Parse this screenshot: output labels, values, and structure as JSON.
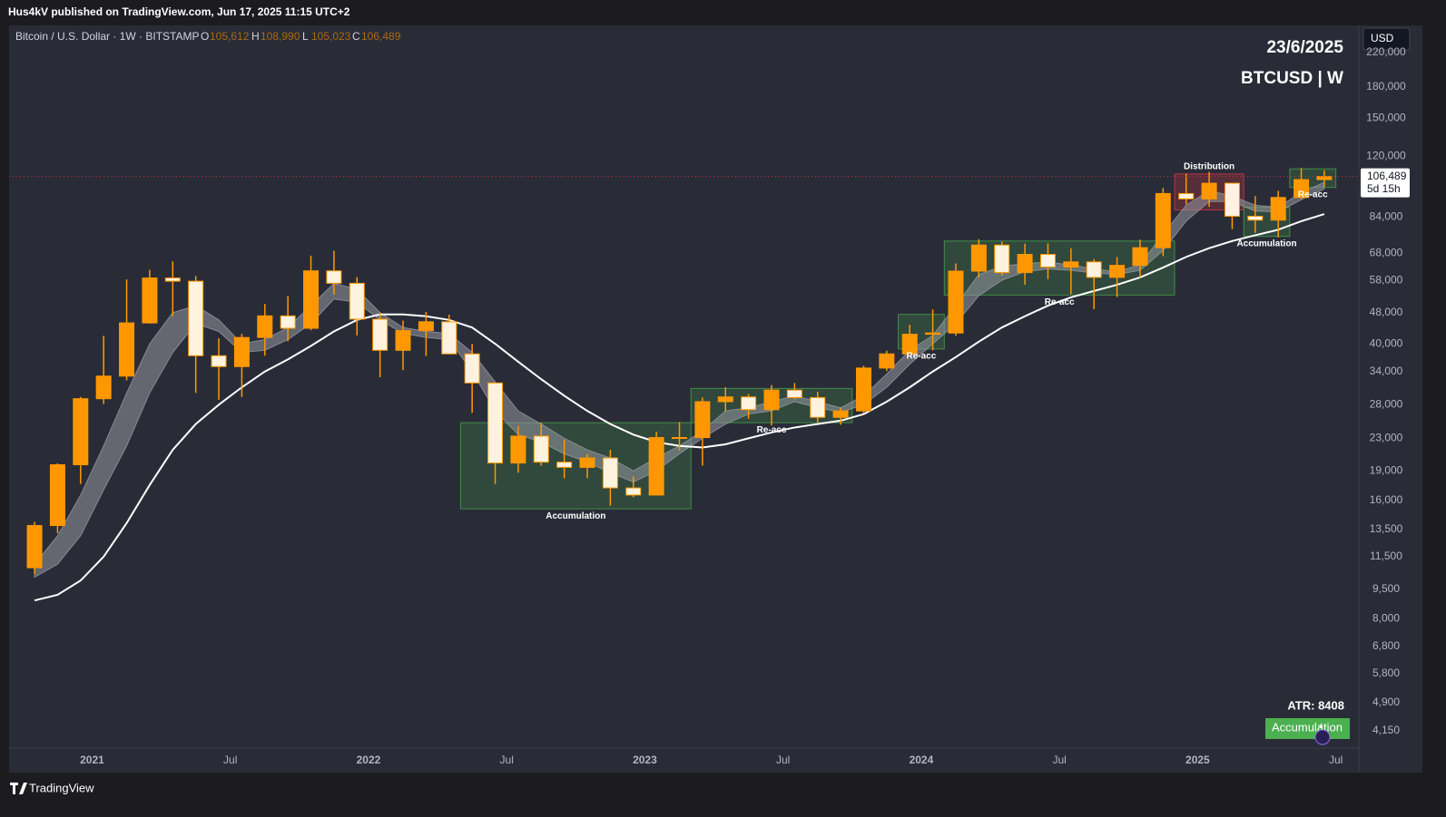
{
  "header": {
    "published": "Hus4kV published on TradingView.com, Jun 17, 2025 11:15 UTC+2",
    "symbol": "Bitcoin / U.S. Dollar · 1W · BITSTAMP",
    "ohlc": [
      {
        "key": "O",
        "value": "105,612"
      },
      {
        "key": "H",
        "value": "108,990"
      },
      {
        "key": "L",
        "value": "105,023"
      },
      {
        "key": "C",
        "value": "106,489"
      }
    ],
    "currency": "USD",
    "branding": "TradingView"
  },
  "chart_data": {
    "type": "candlestick",
    "x": [
      "2020-10",
      "2020-11",
      "2020-12",
      "2021-01",
      "2021-02",
      "2021-03",
      "2021-04",
      "2021-05",
      "2021-06",
      "2021-07",
      "2021-08",
      "2021-09",
      "2021-10",
      "2021-11",
      "2021-12",
      "2022-01",
      "2022-02",
      "2022-03",
      "2022-04",
      "2022-05",
      "2022-06",
      "2022-07",
      "2022-08",
      "2022-09",
      "2022-10",
      "2022-11",
      "2022-12",
      "2023-01",
      "2023-02",
      "2023-03",
      "2023-04",
      "2023-05",
      "2023-06",
      "2023-07",
      "2023-08",
      "2023-09",
      "2023-10",
      "2023-11",
      "2023-12",
      "2024-01",
      "2024-02",
      "2024-03",
      "2024-04",
      "2024-05",
      "2024-06",
      "2024-07",
      "2024-08",
      "2024-09",
      "2024-10",
      "2024-11",
      "2024-12",
      "2025-01",
      "2025-02",
      "2025-03",
      "2025-04",
      "2025-05",
      "2025-06"
    ],
    "open": [
      10780,
      13800,
      19700,
      29000,
      33100,
      45200,
      58800,
      57700,
      37300,
      35000,
      41500,
      47100,
      43800,
      61300,
      57000,
      46200,
      38500,
      43200,
      45500,
      37700,
      31800,
      19900,
      23300,
      20000,
      19400,
      20500,
      17200,
      16500,
      23100,
      23100,
      28500,
      29300,
      27200,
      30500,
      29200,
      26000,
      27000,
      34700,
      37700,
      42300,
      42600,
      61200,
      71300,
      60700,
      67500,
      62700,
      64600,
      59000,
      63300,
      70200,
      96400,
      93400,
      102400,
      84400,
      82500,
      94200,
      104600
    ],
    "high": [
      14100,
      19860,
      29300,
      41900,
      58300,
      61700,
      64800,
      59500,
      41300,
      42400,
      50500,
      52900,
      67000,
      69000,
      59100,
      48000,
      45800,
      48200,
      47400,
      40000,
      31900,
      24700,
      25200,
      22800,
      21000,
      21500,
      18400,
      23900,
      25300,
      29200,
      31000,
      29800,
      31400,
      31800,
      30200,
      27500,
      35200,
      38400,
      44700,
      48900,
      64000,
      73800,
      72800,
      71900,
      72000,
      70000,
      65600,
      66500,
      73600,
      99600,
      108300,
      109400,
      102500,
      95000,
      97900,
      111900,
      110500
    ],
    "low": [
      10400,
      13200,
      17600,
      28100,
      32300,
      45000,
      47000,
      30000,
      28800,
      29300,
      37300,
      40600,
      43300,
      53300,
      42000,
      32900,
      34300,
      37200,
      37600,
      26700,
      17600,
      18800,
      19600,
      18200,
      18200,
      15500,
      16300,
      16500,
      21400,
      19600,
      26900,
      25800,
      24800,
      28900,
      25200,
      24900,
      26600,
      34100,
      37600,
      38500,
      41900,
      59000,
      59600,
      56500,
      58400,
      53500,
      49000,
      52600,
      58900,
      66800,
      90500,
      89200,
      78300,
      76600,
      74600,
      93300,
      100400
    ],
    "close": [
      13800,
      19700,
      29000,
      33100,
      45200,
      58800,
      57700,
      37300,
      35000,
      41500,
      47100,
      43800,
      61300,
      57000,
      46200,
      38500,
      43200,
      45500,
      37700,
      31800,
      19900,
      23300,
      20000,
      19400,
      20500,
      17200,
      16500,
      23100,
      23100,
      28500,
      29300,
      27200,
      30500,
      29200,
      26000,
      27000,
      34700,
      37700,
      42300,
      42600,
      61200,
      71300,
      60700,
      67500,
      62700,
      64600,
      59000,
      63300,
      70200,
      96400,
      93400,
      102400,
      84400,
      82500,
      94200,
      104600,
      106489
    ],
    "up_color": "#ff9800",
    "down_color": "#fff3e0",
    "ma": {
      "color": "#ffffff",
      "values": [
        8900,
        9200,
        10000,
        11500,
        14000,
        17500,
        21500,
        25000,
        28000,
        31000,
        34000,
        36500,
        39500,
        43000,
        46000,
        47500,
        47500,
        47000,
        46000,
        44000,
        40000,
        36000,
        32500,
        29500,
        27000,
        25000,
        23500,
        22500,
        22000,
        21800,
        22200,
        23000,
        23800,
        24500,
        25000,
        25500,
        26500,
        28500,
        31000,
        34000,
        37000,
        40500,
        44000,
        47000,
        50000,
        52500,
        54500,
        56500,
        59000,
        62500,
        66500,
        70000,
        73000,
        75500,
        78000,
        82000,
        85500
      ]
    },
    "band": {
      "color": "#9598a1",
      "upper": [
        11000,
        13000,
        16500,
        22000,
        30000,
        40000,
        48000,
        50000,
        46000,
        40000,
        41000,
        44000,
        50000,
        57000,
        55000,
        48000,
        44000,
        43000,
        42500,
        38000,
        32000,
        27000,
        25000,
        23000,
        21500,
        20500,
        19000,
        20500,
        22000,
        24000,
        27000,
        27500,
        28500,
        29500,
        28500,
        27500,
        29500,
        33500,
        38500,
        42000,
        50000,
        60000,
        63000,
        64000,
        64500,
        63500,
        62000,
        61000,
        63500,
        76000,
        90000,
        98000,
        95000,
        90000,
        89000,
        97000,
        103000
      ],
      "lower": [
        10200,
        11000,
        13000,
        17000,
        22000,
        30000,
        38000,
        45000,
        43000,
        38000,
        38500,
        41000,
        45000,
        52000,
        51000,
        46000,
        42500,
        41500,
        41000,
        34000,
        27000,
        23500,
        22500,
        21000,
        20000,
        18800,
        17800,
        19000,
        21000,
        23000,
        25000,
        26500,
        27000,
        28500,
        27500,
        26800,
        28000,
        31000,
        35500,
        40000,
        45000,
        53000,
        58000,
        61000,
        62000,
        61500,
        60500,
        60000,
        61500,
        69000,
        82000,
        92000,
        92000,
        87000,
        86500,
        93000,
        99000
      ]
    },
    "log_scale": true,
    "xlim": [
      "2020-09",
      "2025-08"
    ],
    "ylim": [
      3750,
      258000
    ],
    "xticks": [
      {
        "value": "2021-01",
        "label": "2021"
      },
      {
        "value": "2021-07",
        "label": "Jul"
      },
      {
        "value": "2022-01",
        "label": "2022"
      },
      {
        "value": "2022-07",
        "label": "Jul"
      },
      {
        "value": "2023-01",
        "label": "2023"
      },
      {
        "value": "2023-07",
        "label": "Jul"
      },
      {
        "value": "2024-01",
        "label": "2024"
      },
      {
        "value": "2024-07",
        "label": "Jul"
      },
      {
        "value": "2025-01",
        "label": "2025"
      },
      {
        "value": "2025-07",
        "label": "Jul"
      }
    ],
    "yticks": [
      {
        "value": 220000,
        "label": "220,000"
      },
      {
        "value": 180000,
        "label": "180,000"
      },
      {
        "value": 150000,
        "label": "150,000"
      },
      {
        "value": 120000,
        "label": "120,000"
      },
      {
        "value": 84000,
        "label": "84,000"
      },
      {
        "value": 68000,
        "label": "68,000"
      },
      {
        "value": 58000,
        "label": "58,000"
      },
      {
        "value": 48000,
        "label": "48,000"
      },
      {
        "value": 40000,
        "label": "40,000"
      },
      {
        "value": 34000,
        "label": "34,000"
      },
      {
        "value": 28000,
        "label": "28,000"
      },
      {
        "value": 23000,
        "label": "23,000"
      },
      {
        "value": 19000,
        "label": "19,000"
      },
      {
        "value": 16000,
        "label": "16,000"
      },
      {
        "value": 13500,
        "label": "13,500"
      },
      {
        "value": 11500,
        "label": "11,500"
      },
      {
        "value": 9500,
        "label": "9,500"
      },
      {
        "value": 8000,
        "label": "8,000"
      },
      {
        "value": 6800,
        "label": "6,800"
      },
      {
        "value": 5800,
        "label": "5,800"
      },
      {
        "value": 4900,
        "label": "4,900"
      },
      {
        "value": 4150,
        "label": "4,150"
      }
    ],
    "grid": false,
    "zones": [
      {
        "label": "Accumulation",
        "x": [
          "2022-05",
          "2023-03"
        ],
        "y": [
          15220,
          25200
        ],
        "color": "#4caf50",
        "label_position": "below"
      },
      {
        "label": "Re-acc",
        "x": [
          "2023-03",
          "2023-10"
        ],
        "y": [
          25200,
          30800
        ],
        "color": "#4caf50",
        "label_position": "below"
      },
      {
        "label": "Re-acc",
        "x": [
          "2023-12",
          "2024-02"
        ],
        "y": [
          38800,
          47500
        ],
        "color": "#4caf50",
        "label_position": "below"
      },
      {
        "label": "Re-acc",
        "x": [
          "2024-02",
          "2024-12"
        ],
        "y": [
          53200,
          73000
        ],
        "color": "#4caf50",
        "label_position": "below"
      },
      {
        "label": "Distribution",
        "x": [
          "2024-12",
          "2025-03"
        ],
        "y": [
          87600,
          108100
        ],
        "color": "#f23645",
        "label_position": "above"
      },
      {
        "label": "Accumulation",
        "x": [
          "2025-03",
          "2025-05"
        ],
        "y": [
          75000,
          88900
        ],
        "color": "#4caf50",
        "label_position": "below"
      },
      {
        "label": "Re-acc",
        "x": [
          "2025-05",
          "2025-07"
        ],
        "y": [
          99900,
          111400
        ],
        "color": "#4caf50",
        "label_position": "below"
      }
    ],
    "last_price": {
      "value": 106489,
      "label": "106,489",
      "color": "#f23645"
    },
    "countdown": "5d 15h",
    "annotations": {
      "date": "23/6/2025",
      "ticker": "BTCUSD | W",
      "atr": "ATR: 8408",
      "status": "Accumulation"
    }
  }
}
